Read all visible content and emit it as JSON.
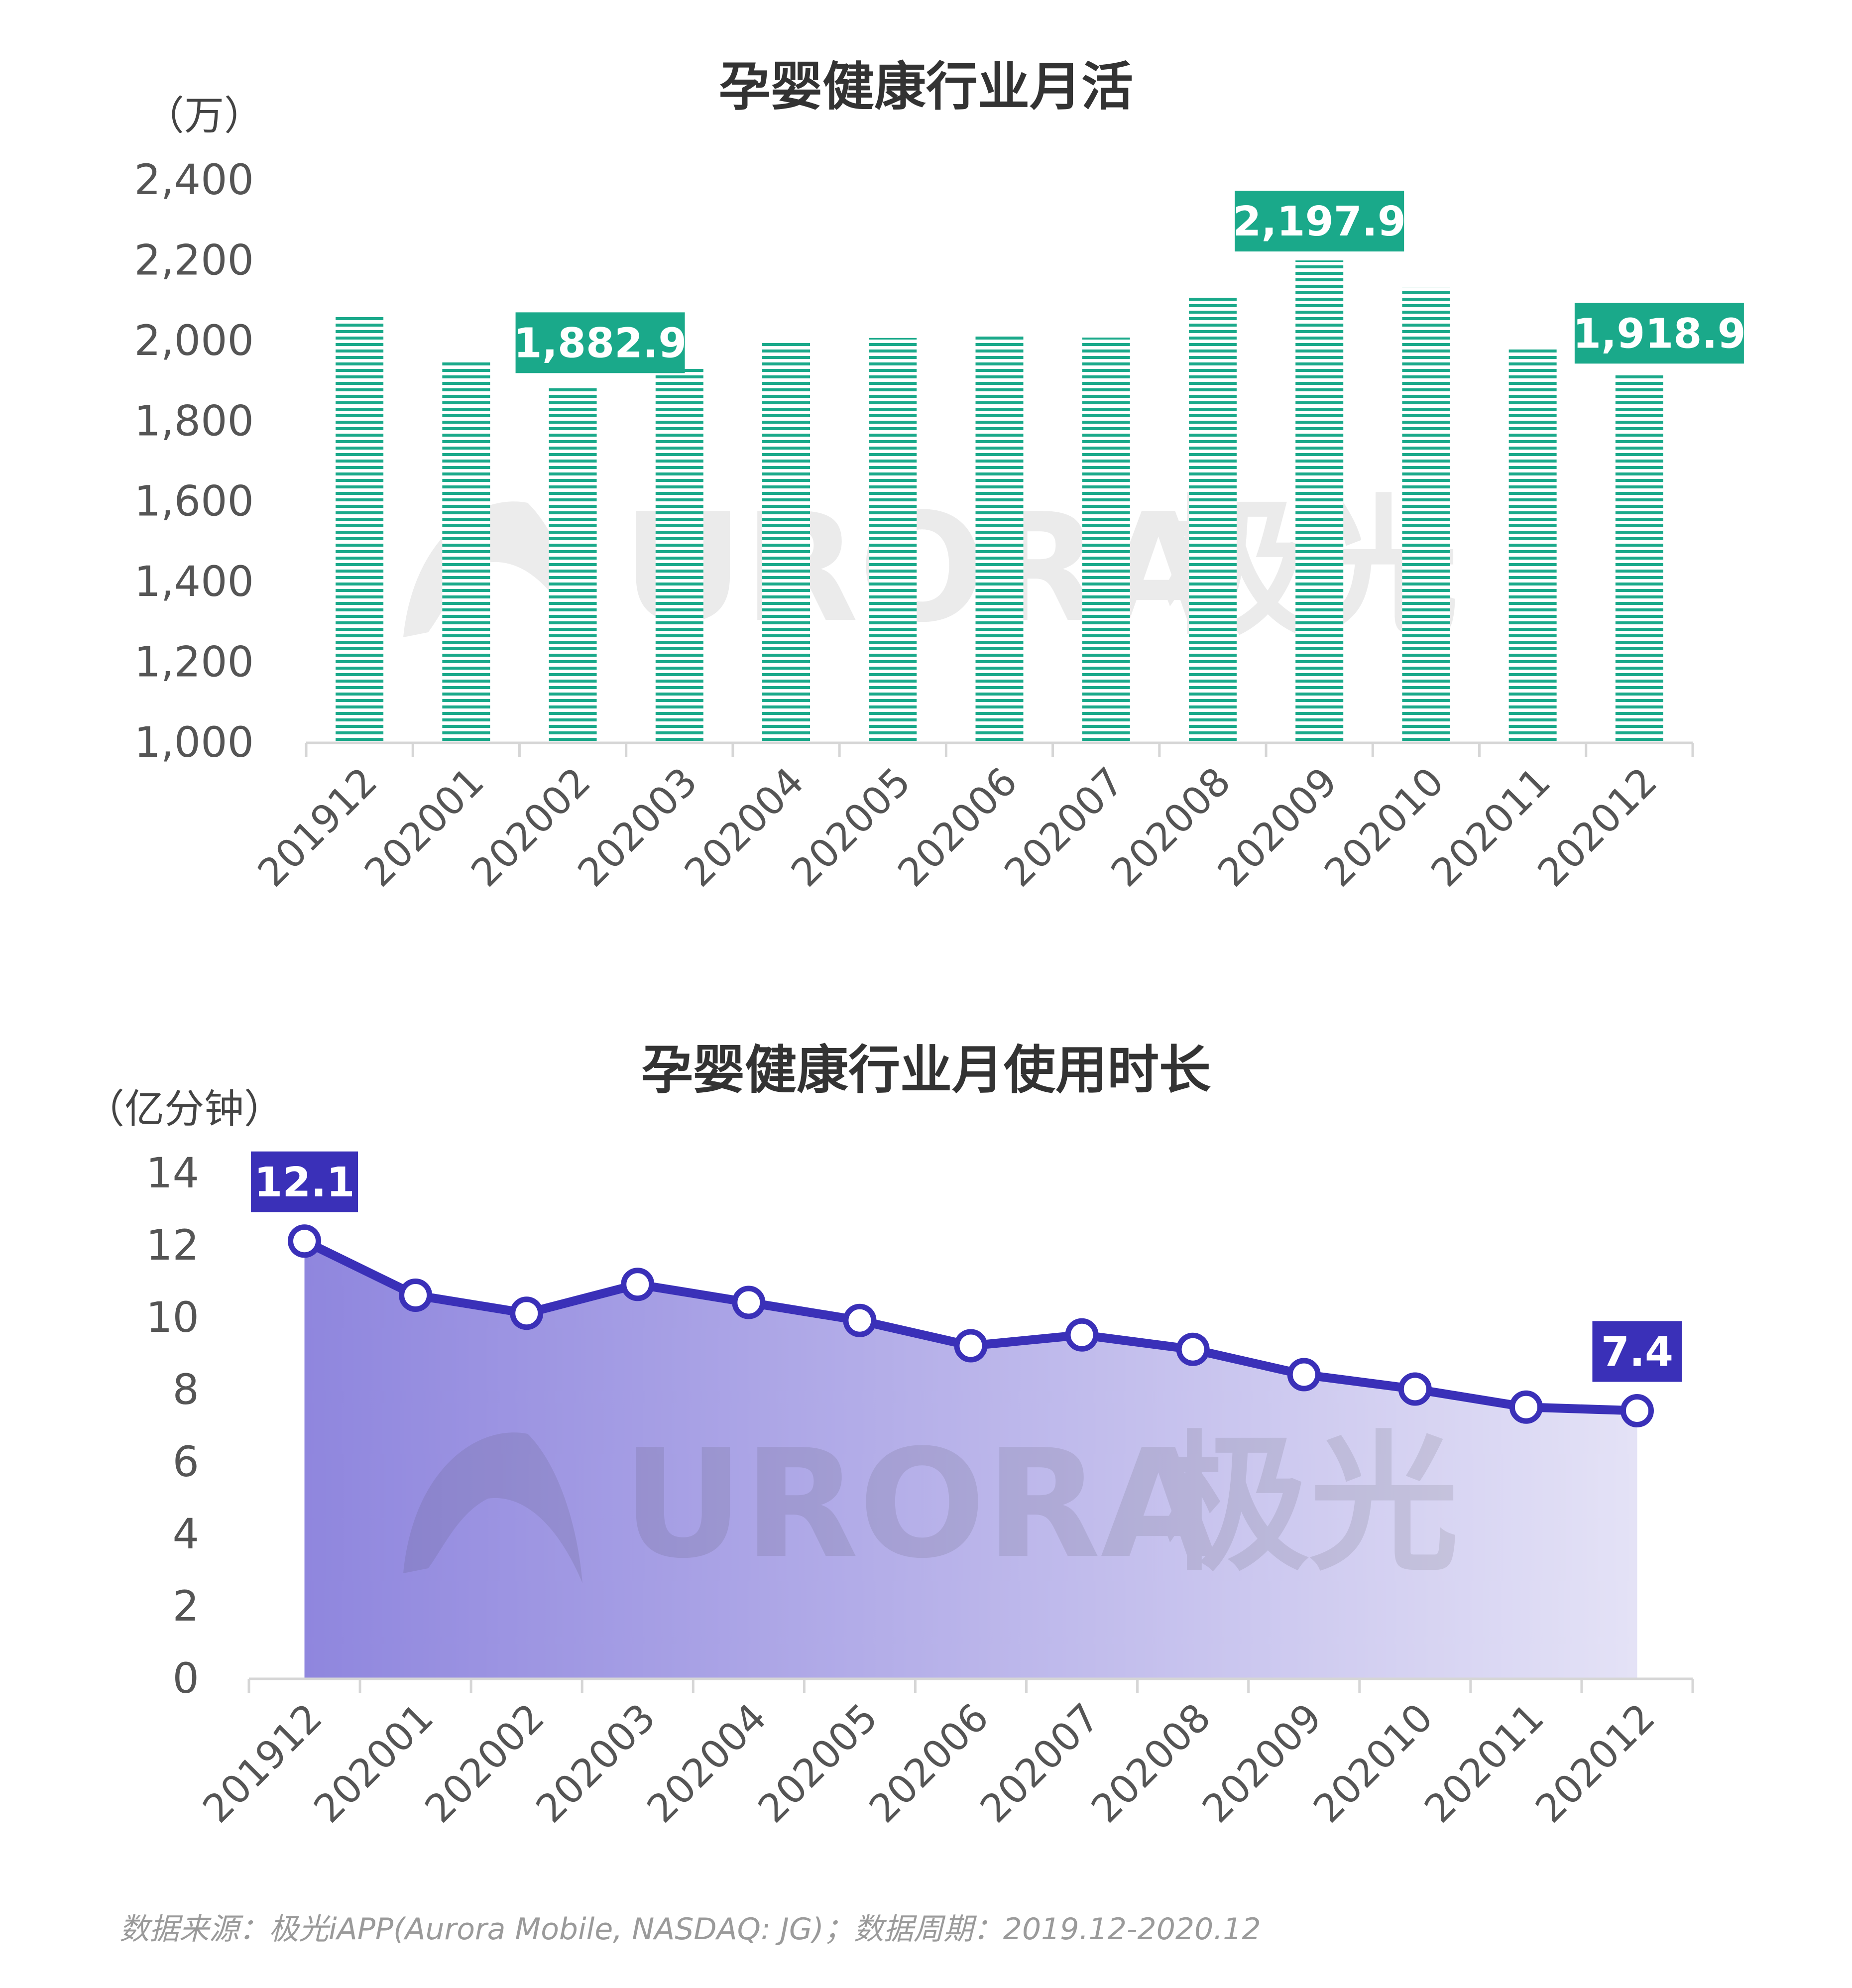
{
  "charts": {
    "mau": {
      "title": "孕婴健康行业月活",
      "unit": "（万）"
    },
    "usage": {
      "title": "孕婴健康行业月使用时长",
      "unit": "（亿分钟）"
    }
  },
  "watermark": {
    "text": "URORA",
    "text_cn": "极光"
  },
  "footnote": "数据来源：极光iAPP(Aurora Mobile, NASDAQ: JG)；数据周期：2019.12-2020.12",
  "colors": {
    "bar": "#1aa98a",
    "line": "#3a30b8",
    "area_start": "#8f86de",
    "area_end": "#e4e2f6",
    "callout_bar": "#1aa98a",
    "callout_line": "#3a30b8"
  },
  "chart_data": [
    {
      "type": "bar",
      "title": "孕婴健康行业月活",
      "ylabel": "（万）",
      "categories": [
        "201912",
        "202001",
        "202002",
        "202003",
        "202004",
        "202005",
        "202006",
        "202007",
        "202008",
        "202009",
        "202010",
        "202011",
        "202012"
      ],
      "values": [
        2063,
        1945,
        1882.9,
        1935,
        1993,
        2005,
        2010,
        2006,
        2110,
        2197.9,
        2130,
        1982,
        1918.9
      ],
      "ylim": [
        1000,
        2400
      ],
      "yticks": [
        "1,000",
        "1,200",
        "1,400",
        "1,600",
        "1,800",
        "2,000",
        "2,200",
        "2,400"
      ],
      "data_labels": [
        {
          "index": 2,
          "text": "1,882.9"
        },
        {
          "index": 9,
          "text": "2,197.9"
        },
        {
          "index": 12,
          "text": "1,918.9"
        }
      ],
      "grid": false
    },
    {
      "type": "area",
      "title": "孕婴健康行业月使用时长",
      "ylabel": "（亿分钟）",
      "categories": [
        "201912",
        "202001",
        "202002",
        "202003",
        "202004",
        "202005",
        "202006",
        "202007",
        "202008",
        "202009",
        "202010",
        "202011",
        "202012"
      ],
      "values": [
        12.1,
        10.6,
        10.1,
        10.9,
        10.4,
        9.9,
        9.2,
        9.5,
        9.1,
        8.4,
        8.0,
        7.5,
        7.4
      ],
      "ylim": [
        0,
        14
      ],
      "yticks": [
        "0",
        "2",
        "4",
        "6",
        "8",
        "10",
        "12",
        "14"
      ],
      "data_labels": [
        {
          "index": 0,
          "text": "12.1"
        },
        {
          "index": 12,
          "text": "7.4"
        }
      ],
      "grid": false
    }
  ]
}
